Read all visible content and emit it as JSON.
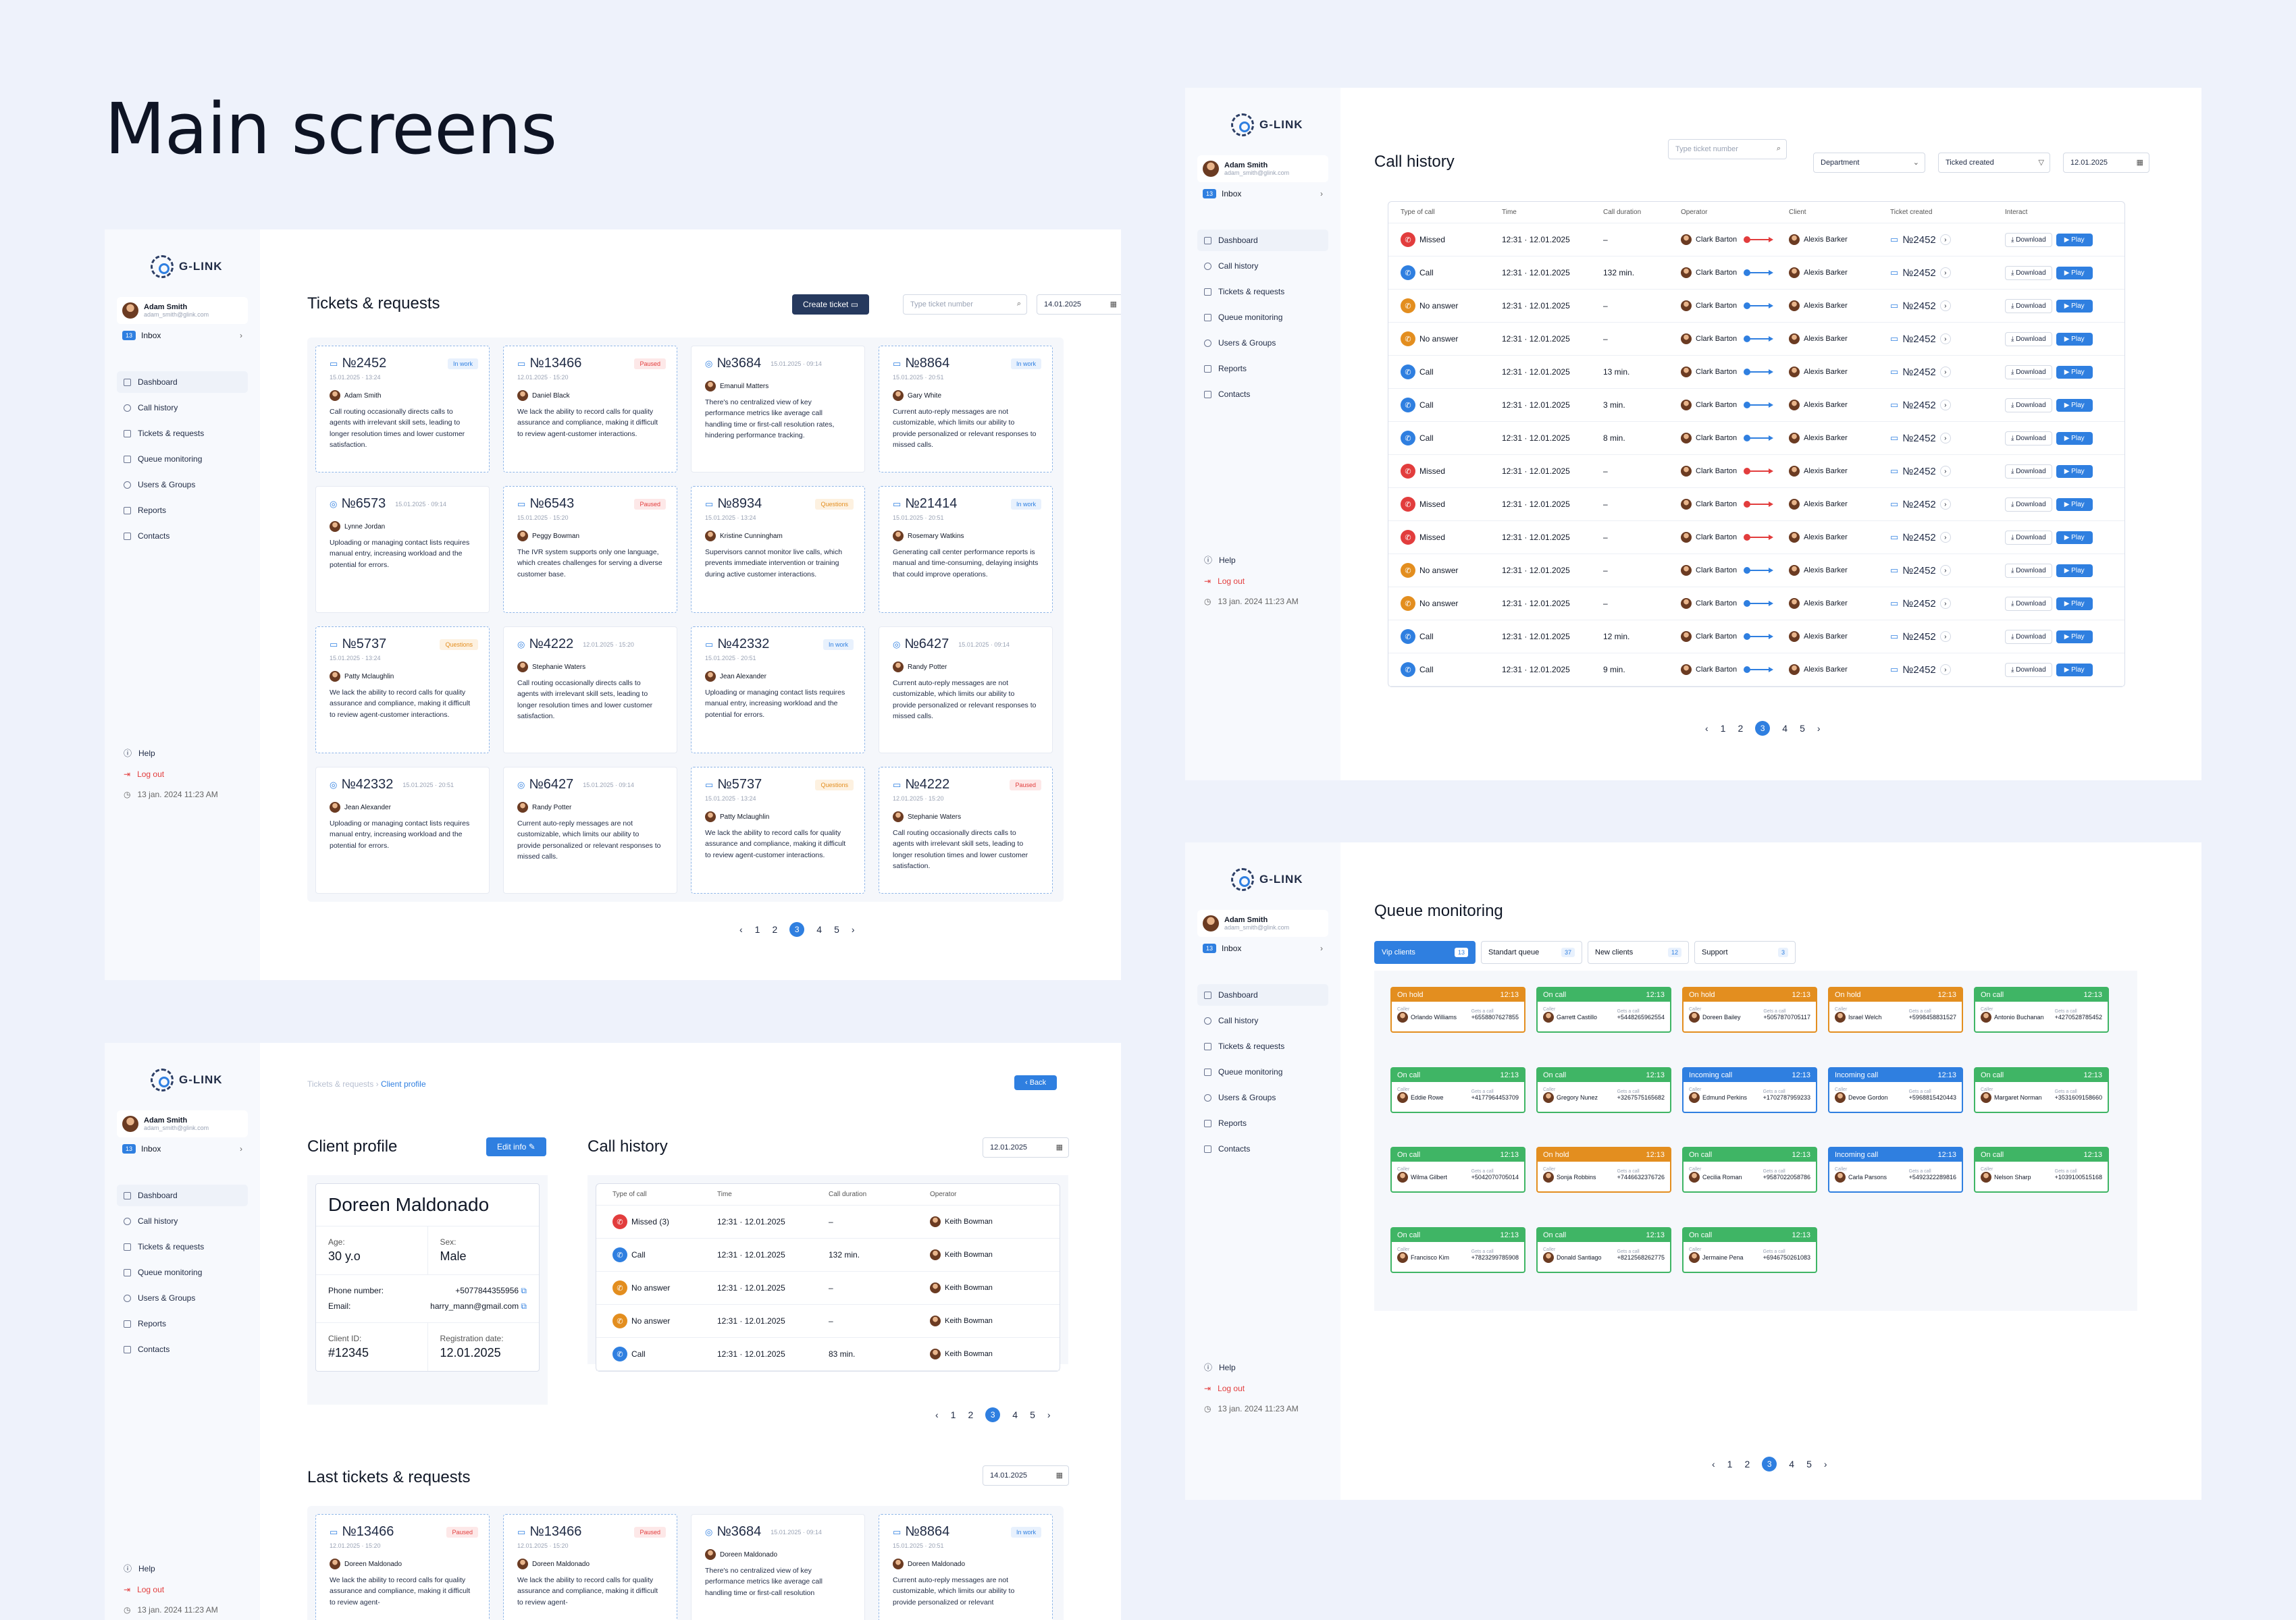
{
  "page_title": "Main screens",
  "brand": "G-LINK",
  "user": {
    "name": "Adam Smith",
    "email": "adam_smith@glink.com"
  },
  "inbox": {
    "label": "Inbox",
    "count": "13"
  },
  "nav": [
    "Dashboard",
    "Call history",
    "Tickets & requests",
    "Queue monitoring",
    "Users & Groups",
    "Reports",
    "Contacts"
  ],
  "footer": {
    "help": "Help",
    "logout": "Log out",
    "datetime": "13 jan. 2024   11:23 AM"
  },
  "pagination": {
    "prev": "‹",
    "next": "›",
    "pages": [
      "1",
      "2",
      "3",
      "4",
      "5"
    ]
  },
  "tickets_screen": {
    "title": "Tickets & requests",
    "create_button": "Create ticket",
    "search_placeholder": "Type ticket number",
    "date": "14.01.2025",
    "tickets": [
      {
        "number": "№2452",
        "date": "15.01.2025 · 13:24",
        "status": "In work",
        "status_type": "inwork",
        "person": "Adam Smith",
        "text": "Call routing occasionally directs calls to agents with irrelevant skill sets, leading to longer resolution times and lower customer satisfaction.",
        "style": "dashed",
        "kind": "ticket"
      },
      {
        "number": "№13466",
        "date": "12.01.2025 · 15:20",
        "status": "Paused",
        "status_type": "paused",
        "person": "Daniel Black",
        "text": "We lack the ability to record calls for quality assurance and compliance, making it difficult to review agent-customer interactions.",
        "style": "dashed",
        "kind": "ticket"
      },
      {
        "number": "№3684",
        "date": "15.01.2025 · 09:14",
        "status": "",
        "status_type": "",
        "person": "Emanuil Matters",
        "text": "There's no centralized view of key performance metrics like average call handling time or first-call resolution rates, hindering performance tracking.",
        "style": "solid",
        "kind": "request"
      },
      {
        "number": "№8864",
        "date": "15.01.2025 · 20:51",
        "status": "In work",
        "status_type": "inwork",
        "person": "Gary White",
        "text": "Current auto-reply messages are not customizable, which limits our ability to provide personalized or relevant responses to missed calls.",
        "style": "dashed",
        "kind": "ticket"
      },
      {
        "number": "№6573",
        "date": "15.01.2025 · 09:14",
        "status": "",
        "status_type": "",
        "person": "Lynne Jordan",
        "text": "Uploading or managing contact lists requires manual entry, increasing workload and the potential for errors.",
        "style": "solid",
        "kind": "request"
      },
      {
        "number": "№6543",
        "date": "15.01.2025 · 15:20",
        "status": "Paused",
        "status_type": "paused",
        "person": "Peggy Bowman",
        "text": "The IVR system supports only one language, which creates challenges for serving a diverse customer base.",
        "style": "dashed",
        "kind": "ticket"
      },
      {
        "number": "№8934",
        "date": "15.01.2025 · 13:24",
        "status": "Questions",
        "status_type": "questions",
        "person": "Kristine Cunningham",
        "text": "Supervisors cannot monitor live calls, which prevents immediate intervention or training during active customer interactions.",
        "style": "dashed",
        "kind": "ticket"
      },
      {
        "number": "№21414",
        "date": "15.01.2025 · 20:51",
        "status": "In work",
        "status_type": "inwork",
        "person": "Rosemary Watkins",
        "text": "Generating call center performance reports is manual and time-consuming, delaying insights that could improve operations.",
        "style": "dashed",
        "kind": "ticket"
      },
      {
        "number": "№5737",
        "date": "15.01.2025 · 13:24",
        "status": "Questions",
        "status_type": "questions",
        "person": "Patty Mclaughlin",
        "text": "We lack the ability to record calls for quality assurance and compliance, making it difficult to review agent-customer interactions.",
        "style": "dashed",
        "kind": "ticket"
      },
      {
        "number": "№4222",
        "date": "12.01.2025 · 15:20",
        "status": "",
        "status_type": "",
        "person": "Stephanie Waters",
        "text": "Call routing occasionally directs calls to agents with irrelevant skill sets, leading to longer resolution times and lower customer satisfaction.",
        "style": "solid",
        "kind": "request"
      },
      {
        "number": "№42332",
        "date": "15.01.2025 · 20:51",
        "status": "In work",
        "status_type": "inwork",
        "person": "Jean Alexander",
        "text": "Uploading or managing contact lists requires manual entry, increasing workload and the potential for errors.",
        "style": "dashed",
        "kind": "ticket"
      },
      {
        "number": "№6427",
        "date": "15.01.2025 · 09:14",
        "status": "",
        "status_type": "",
        "person": "Randy Potter",
        "text": "Current auto-reply messages are not customizable, which limits our ability to provide personalized or relevant responses to missed calls.",
        "style": "solid",
        "kind": "request"
      },
      {
        "number": "№42332",
        "date": "15.01.2025 · 20:51",
        "status": "",
        "status_type": "",
        "person": "Jean Alexander",
        "text": "Uploading or managing contact lists requires manual entry, increasing workload and the potential for errors.",
        "style": "solid",
        "kind": "request"
      },
      {
        "number": "№6427",
        "date": "15.01.2025 · 09:14",
        "status": "",
        "status_type": "",
        "person": "Randy Potter",
        "text": "Current auto-reply messages are not customizable, which limits our ability to provide personalized or relevant responses to missed calls.",
        "style": "solid",
        "kind": "request"
      },
      {
        "number": "№5737",
        "date": "15.01.2025 · 13:24",
        "status": "Questions",
        "status_type": "questions",
        "person": "Patty Mclaughlin",
        "text": "We lack the ability to record calls for quality assurance and compliance, making it difficult to review agent-customer interactions.",
        "style": "dashed",
        "kind": "ticket"
      },
      {
        "number": "№4222",
        "date": "12.01.2025 · 15:20",
        "status": "Paused",
        "status_type": "paused",
        "person": "Stephanie Waters",
        "text": "Call routing occasionally directs calls to agents with irrelevant skill sets, leading to longer resolution times and lower customer satisfaction.",
        "style": "dashed",
        "kind": "ticket"
      }
    ]
  },
  "call_history_screen": {
    "title": "Call history",
    "search_placeholder": "Type ticket number",
    "department": "Department",
    "ticket_created": "Ticked created",
    "date": "12.01.2025",
    "columns": [
      "Type of call",
      "Time",
      "Call duration",
      "Operator",
      "Client",
      "Ticket created",
      "Interact"
    ],
    "download": "Download",
    "play": "Play",
    "rows": [
      {
        "type": "Missed",
        "kind": "missed",
        "time": "12:31 · 12.01.2025",
        "duration": "–",
        "operator": "Clark Barton",
        "client": "Alexis Barker",
        "ticket": "№2452"
      },
      {
        "type": "Call",
        "kind": "call",
        "time": "12:31 · 12.01.2025",
        "duration": "132 min.",
        "operator": "Clark Barton",
        "client": "Alexis Barker",
        "ticket": "№2452"
      },
      {
        "type": "No answer",
        "kind": "noans",
        "time": "12:31 · 12.01.2025",
        "duration": "–",
        "operator": "Clark Barton",
        "client": "Alexis Barker",
        "ticket": "№2452"
      },
      {
        "type": "No answer",
        "kind": "noans",
        "time": "12:31 · 12.01.2025",
        "duration": "–",
        "operator": "Clark Barton",
        "client": "Alexis Barker",
        "ticket": "№2452"
      },
      {
        "type": "Call",
        "kind": "call",
        "time": "12:31 · 12.01.2025",
        "duration": "13 min.",
        "operator": "Clark Barton",
        "client": "Alexis Barker",
        "ticket": "№2452"
      },
      {
        "type": "Call",
        "kind": "call",
        "time": "12:31 · 12.01.2025",
        "duration": "3 min.",
        "operator": "Clark Barton",
        "client": "Alexis Barker",
        "ticket": "№2452"
      },
      {
        "type": "Call",
        "kind": "call",
        "time": "12:31 · 12.01.2025",
        "duration": "8 min.",
        "operator": "Clark Barton",
        "client": "Alexis Barker",
        "ticket": "№2452"
      },
      {
        "type": "Missed",
        "kind": "missed",
        "time": "12:31 · 12.01.2025",
        "duration": "–",
        "operator": "Clark Barton",
        "client": "Alexis Barker",
        "ticket": "№2452"
      },
      {
        "type": "Missed",
        "kind": "missed",
        "time": "12:31 · 12.01.2025",
        "duration": "–",
        "operator": "Clark Barton",
        "client": "Alexis Barker",
        "ticket": "№2452"
      },
      {
        "type": "Missed",
        "kind": "missed",
        "time": "12:31 · 12.01.2025",
        "duration": "–",
        "operator": "Clark Barton",
        "client": "Alexis Barker",
        "ticket": "№2452"
      },
      {
        "type": "No answer",
        "kind": "noans",
        "time": "12:31 · 12.01.2025",
        "duration": "–",
        "operator": "Clark Barton",
        "client": "Alexis Barker",
        "ticket": "№2452"
      },
      {
        "type": "No answer",
        "kind": "noans",
        "time": "12:31 · 12.01.2025",
        "duration": "–",
        "operator": "Clark Barton",
        "client": "Alexis Barker",
        "ticket": "№2452"
      },
      {
        "type": "Call",
        "kind": "call",
        "time": "12:31 · 12.01.2025",
        "duration": "12 min.",
        "operator": "Clark Barton",
        "client": "Alexis Barker",
        "ticket": "№2452"
      },
      {
        "type": "Call",
        "kind": "call",
        "time": "12:31 · 12.01.2025",
        "duration": "9 min.",
        "operator": "Clark Barton",
        "client": "Alexis Barker",
        "ticket": "№2452"
      }
    ]
  },
  "profile_screen": {
    "breadcrumb_parent": "Tickets & requests",
    "breadcrumb_current": "Client profile",
    "back": "‹  Back",
    "title": "Client profile",
    "edit": "Edit info",
    "name": "Doreen Maldonado",
    "age_label": "Age:",
    "age": "30 y.o",
    "sex_label": "Sex:",
    "sex": "Male",
    "phone_label": "Phone number:",
    "phone": "+5077844355956",
    "email_label": "Email:",
    "email": "harry_mann@gmail.com",
    "client_id_label": "Client ID:",
    "client_id": "#12345",
    "reg_label": "Registration date:",
    "reg": "12.01.2025",
    "calls_title": "Call history",
    "calls_date": "12.01.2025",
    "calls_columns": [
      "Type of call",
      "Time",
      "Call duration",
      "Operator"
    ],
    "calls": [
      {
        "type": "Missed (3)",
        "kind": "missed",
        "time": "12:31 · 12.01.2025",
        "duration": "–",
        "operator": "Keith Bowman"
      },
      {
        "type": "Call",
        "kind": "call",
        "time": "12:31 · 12.01.2025",
        "duration": "132 min.",
        "operator": "Keith Bowman"
      },
      {
        "type": "No answer",
        "kind": "noans",
        "time": "12:31 · 12.01.2025",
        "duration": "–",
        "operator": "Keith Bowman"
      },
      {
        "type": "No answer",
        "kind": "noans",
        "time": "12:31 · 12.01.2025",
        "duration": "–",
        "operator": "Keith Bowman"
      },
      {
        "type": "Call",
        "kind": "call",
        "time": "12:31 · 12.01.2025",
        "duration": "83 min.",
        "operator": "Keith Bowman"
      }
    ],
    "last_title": "Last tickets & requests",
    "last_date": "14.01.2025",
    "last_tickets": [
      {
        "number": "№13466",
        "date": "12.01.2025 · 15:20",
        "status": "Paused",
        "status_type": "paused",
        "person": "Doreen Maldonado",
        "text": "We lack the ability to record calls for quality assurance and compliance, making it difficult to review agent-",
        "style": "dashed",
        "kind": "ticket"
      },
      {
        "number": "№13466",
        "date": "12.01.2025 · 15:20",
        "status": "Paused",
        "status_type": "paused",
        "person": "Doreen Maldonado",
        "text": "We lack the ability to record calls for quality assurance and compliance, making it difficult to review agent-",
        "style": "dashed",
        "kind": "ticket"
      },
      {
        "number": "№3684",
        "date": "15.01.2025 · 09:14",
        "status": "",
        "status_type": "",
        "person": "Doreen Maldonado",
        "text": "There's no centralized view of key performance metrics like average call handling time or first-call resolution",
        "style": "solid",
        "kind": "request"
      },
      {
        "number": "№8864",
        "date": "15.01.2025 · 20:51",
        "status": "In work",
        "status_type": "inwork",
        "person": "Doreen Maldonado",
        "text": "Current auto-reply messages are not customizable, which limits our ability to provide personalized or relevant",
        "style": "dashed",
        "kind": "ticket"
      }
    ]
  },
  "queue_screen": {
    "title": "Queue monitoring",
    "tabs": [
      {
        "label": "Vip clients",
        "count": "13"
      },
      {
        "label": "Standart queue",
        "count": "37"
      },
      {
        "label": "New clients",
        "count": "12"
      },
      {
        "label": "Support",
        "count": "3"
      }
    ],
    "caller_label": "Caller",
    "gets_label": "Gets a call",
    "cards": [
      {
        "status": "On hold",
        "kind": "hold",
        "time": "12:13",
        "name": "Orlando Williams",
        "phone": "+6558807627855"
      },
      {
        "status": "On call",
        "kind": "call",
        "time": "12:13",
        "name": "Garrett Castillo",
        "phone": "+5448265962554"
      },
      {
        "status": "On hold",
        "kind": "hold",
        "time": "12:13",
        "name": "Doreen Bailey",
        "phone": "+5057870705117"
      },
      {
        "status": "On hold",
        "kind": "hold",
        "time": "12:13",
        "name": "Israel Welch",
        "phone": "+5998458831527"
      },
      {
        "status": "On call",
        "kind": "call",
        "time": "12:13",
        "name": "Antonio Buchanan",
        "phone": "+4270528785452"
      },
      {
        "status": "On call",
        "kind": "call",
        "time": "12:13",
        "name": "Eddie Rowe",
        "phone": "+4177964453709"
      },
      {
        "status": "On call",
        "kind": "call",
        "time": "12:13",
        "name": "Gregory Nunez",
        "phone": "+3267575165682"
      },
      {
        "status": "Incoming call",
        "kind": "inc",
        "time": "12:13",
        "name": "Edmund Perkins",
        "phone": "+1702787959233"
      },
      {
        "status": "Incoming call",
        "kind": "inc",
        "time": "12:13",
        "name": "Devoe Gordon",
        "phone": "+5968815420443"
      },
      {
        "status": "On call",
        "kind": "call",
        "time": "12:13",
        "name": "Margaret Norman",
        "phone": "+3531609158660"
      },
      {
        "status": "On call",
        "kind": "call",
        "time": "12:13",
        "name": "Wilma Gilbert",
        "phone": "+5042070705014"
      },
      {
        "status": "On hold",
        "kind": "hold",
        "time": "12:13",
        "name": "Sonja Robbins",
        "phone": "+7446632376726"
      },
      {
        "status": "On call",
        "kind": "call",
        "time": "12:13",
        "name": "Cecilia Roman",
        "phone": "+9587022058786"
      },
      {
        "status": "Incoming call",
        "kind": "inc",
        "time": "12:13",
        "name": "Carla Parsons",
        "phone": "+5492322289816"
      },
      {
        "status": "On call",
        "kind": "call",
        "time": "12:13",
        "name": "Nelson Sharp",
        "phone": "+1039100515168"
      },
      {
        "status": "On call",
        "kind": "call",
        "time": "12:13",
        "name": "Francisco Kim",
        "phone": "+7823299785908"
      },
      {
        "status": "On call",
        "kind": "call",
        "time": "12:13",
        "name": "Donald Santiago",
        "phone": "+8212568262775"
      },
      {
        "status": "On call",
        "kind": "call",
        "time": "12:13",
        "name": "Jermaine Pena",
        "phone": "+6946750261083"
      }
    ]
  },
  "colors": {
    "accent": "#2f7fe0",
    "dark": "#26395e",
    "missed": "#e23d3d",
    "no_answer": "#e38e1f",
    "on_call": "#3fb565"
  }
}
